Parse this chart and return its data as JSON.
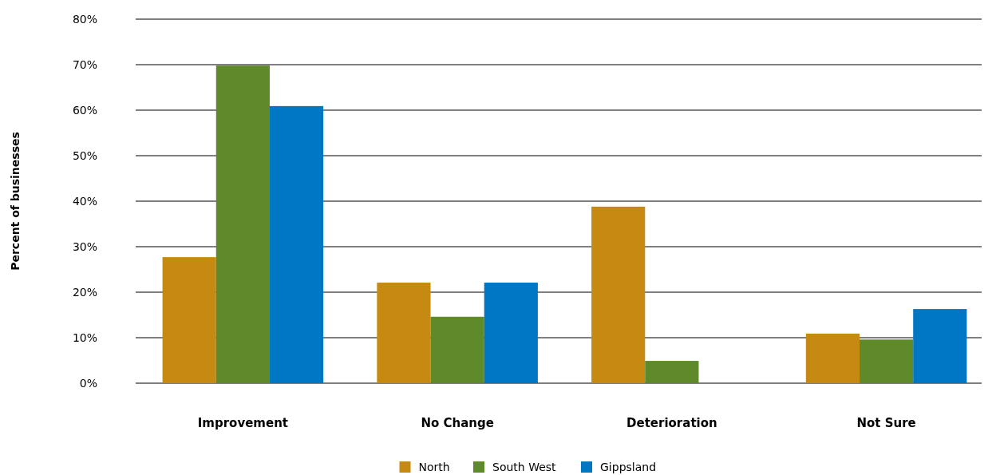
{
  "chart_data": {
    "type": "bar",
    "ylabel": "Percent of businesses",
    "categories": [
      "Improvement",
      "No Change",
      "Deterioration",
      "Not Sure"
    ],
    "series": [
      {
        "name": "North",
        "color": "#c68a12",
        "values": [
          27.7,
          22.1,
          38.8,
          10.9
        ]
      },
      {
        "name": "South West",
        "color": "#5e8a29",
        "values": [
          69.8,
          14.6,
          4.9,
          9.6
        ]
      },
      {
        "name": "Gippsland",
        "color": "#0077c2",
        "values": [
          60.9,
          22.1,
          0,
          16.3
        ]
      }
    ],
    "ylim": [
      0,
      80
    ],
    "yticks": [
      {
        "value": 0,
        "label": "0%"
      },
      {
        "value": 10,
        "label": "10%"
      },
      {
        "value": 20,
        "label": "20%"
      },
      {
        "value": 30,
        "label": "30%"
      },
      {
        "value": 40,
        "label": "40%"
      },
      {
        "value": 50,
        "label": "50%"
      },
      {
        "value": 60,
        "label": "60%"
      },
      {
        "value": 70,
        "label": "70%"
      },
      {
        "value": 80,
        "label": "80%"
      }
    ],
    "grid": "y",
    "legend": "bottom"
  }
}
